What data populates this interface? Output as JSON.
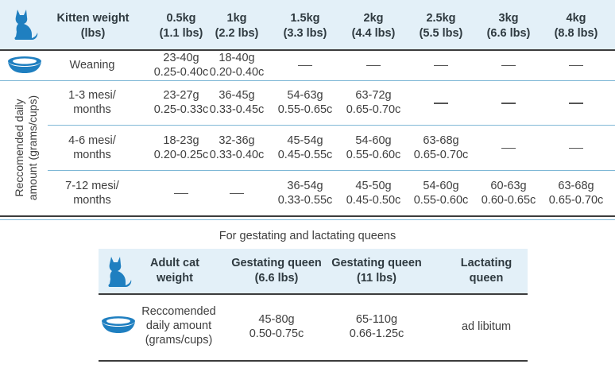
{
  "kitten_table": {
    "corner_icon": "cat-silhouette-icon",
    "header": {
      "label": "Kitten weight\n(lbs)",
      "weights": [
        {
          "kg": "0.5kg",
          "lbs": "(1.1 lbs)"
        },
        {
          "kg": "1kg",
          "lbs": "(2.2 lbs)"
        },
        {
          "kg": "1.5kg",
          "lbs": "(3.3 lbs)"
        },
        {
          "kg": "2kg",
          "lbs": "(4.4 lbs)"
        },
        {
          "kg": "2.5kg",
          "lbs": "(5.5 lbs)"
        },
        {
          "kg": "3kg",
          "lbs": "(6.6 lbs)"
        },
        {
          "kg": "4kg",
          "lbs": "(8.8 lbs)"
        }
      ]
    },
    "bowl_icon": "food-bowl-icon",
    "side_label": "Reccomended daily\namount (grams/cups)",
    "dash": "—",
    "rows": [
      {
        "age": "Weaning",
        "values": [
          "23-40g\n0.25-0.40c",
          "18-40g\n0.20-0.40c",
          "—",
          "—",
          "—",
          "—",
          "—"
        ]
      },
      {
        "age": "1-3 mesi/\nmonths",
        "values": [
          "23-27g\n0.25-0.33c",
          "36-45g\n0.33-0.45c",
          "54-63g\n0.55-0.65c",
          "63-72g\n0.65-0.70c",
          "—",
          "—",
          "—"
        ]
      },
      {
        "age": "4-6 mesi/\nmonths",
        "values": [
          "18-23g\n0.20-0.25c",
          "32-36g\n0.33-0.40c",
          "45-54g\n0.45-0.55c",
          "54-60g\n0.55-0.60c",
          "63-68g\n0.65-0.70c",
          "—",
          "—"
        ]
      },
      {
        "age": "7-12 mesi/\nmonths",
        "values": [
          "—",
          "—",
          "36-54g\n0.33-0.55c",
          "45-50g\n0.45-0.50c",
          "54-60g\n0.55-0.60c",
          "60-63g\n0.60-0.65c",
          "63-68g\n0.65-0.70c"
        ]
      }
    ]
  },
  "queens_table": {
    "title": "For gestating and lactating queens",
    "corner_icon": "cat-silhouette-icon",
    "bowl_icon": "food-bowl-icon",
    "headers": [
      "Adult cat\nweight",
      "Gestating queen\n(6.6 lbs)",
      "Gestating queen\n(11 lbs)",
      "Lactating\nqueen"
    ],
    "row": {
      "label": "Reccomended\ndaily amount\n(grams/cups)",
      "values": [
        "45-80g\n0.50-0.75c",
        "65-110g\n0.66-1.25c",
        "ad libitum"
      ]
    }
  },
  "colors": {
    "header_band": "#e3f0f8",
    "icon_blue": "#1f7fc0",
    "rule_blue": "#7fb8d6",
    "rule_dark": "#3c3c3c"
  }
}
